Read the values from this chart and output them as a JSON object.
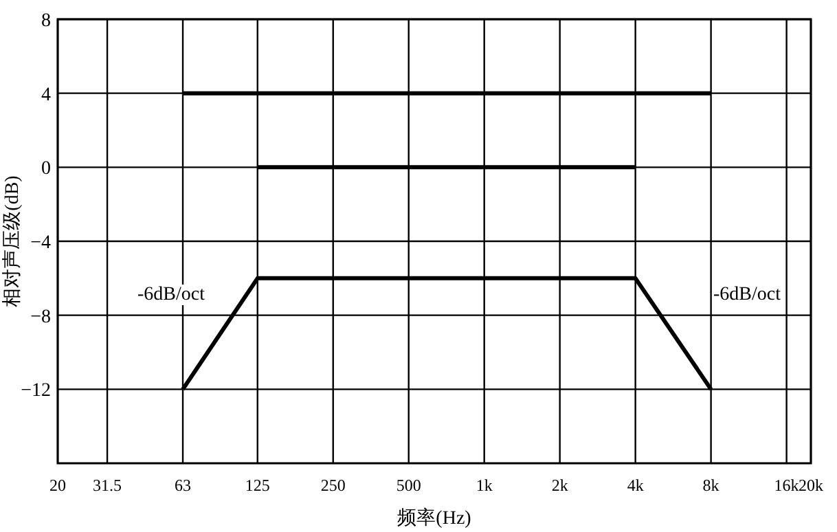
{
  "chart_data": {
    "type": "line",
    "xlabel": "频率(Hz)",
    "ylabel": "相对声压级(dB)",
    "log": "x",
    "grid": true,
    "xlim": [
      20,
      20000
    ],
    "ylim": [
      -16,
      8
    ],
    "xticks": [
      20,
      31.5,
      63,
      125,
      250,
      500,
      {
        "value": 1000,
        "label": "1k"
      },
      {
        "value": 2000,
        "label": "2k"
      },
      {
        "value": 4000,
        "label": "4k"
      },
      {
        "value": 8000,
        "label": "8k"
      },
      {
        "value": 16000,
        "label": "16k"
      },
      {
        "value": 20000,
        "label": "20k"
      }
    ],
    "yticks": [
      -12,
      -8,
      -4,
      0,
      4,
      8
    ],
    "series": [
      {
        "color": "#000000",
        "x": [
          63,
          8000
        ],
        "values": [
          4,
          4
        ]
      },
      {
        "color": "#000000",
        "x": [
          125,
          4000
        ],
        "values": [
          0,
          0
        ]
      },
      {
        "color": "#000000",
        "x": [
          63,
          125,
          4000,
          8000
        ],
        "values": [
          -12,
          -6,
          -6,
          -12
        ]
      }
    ],
    "annotations": [
      "-6dB/oct",
      "-6dB/oct"
    ]
  }
}
